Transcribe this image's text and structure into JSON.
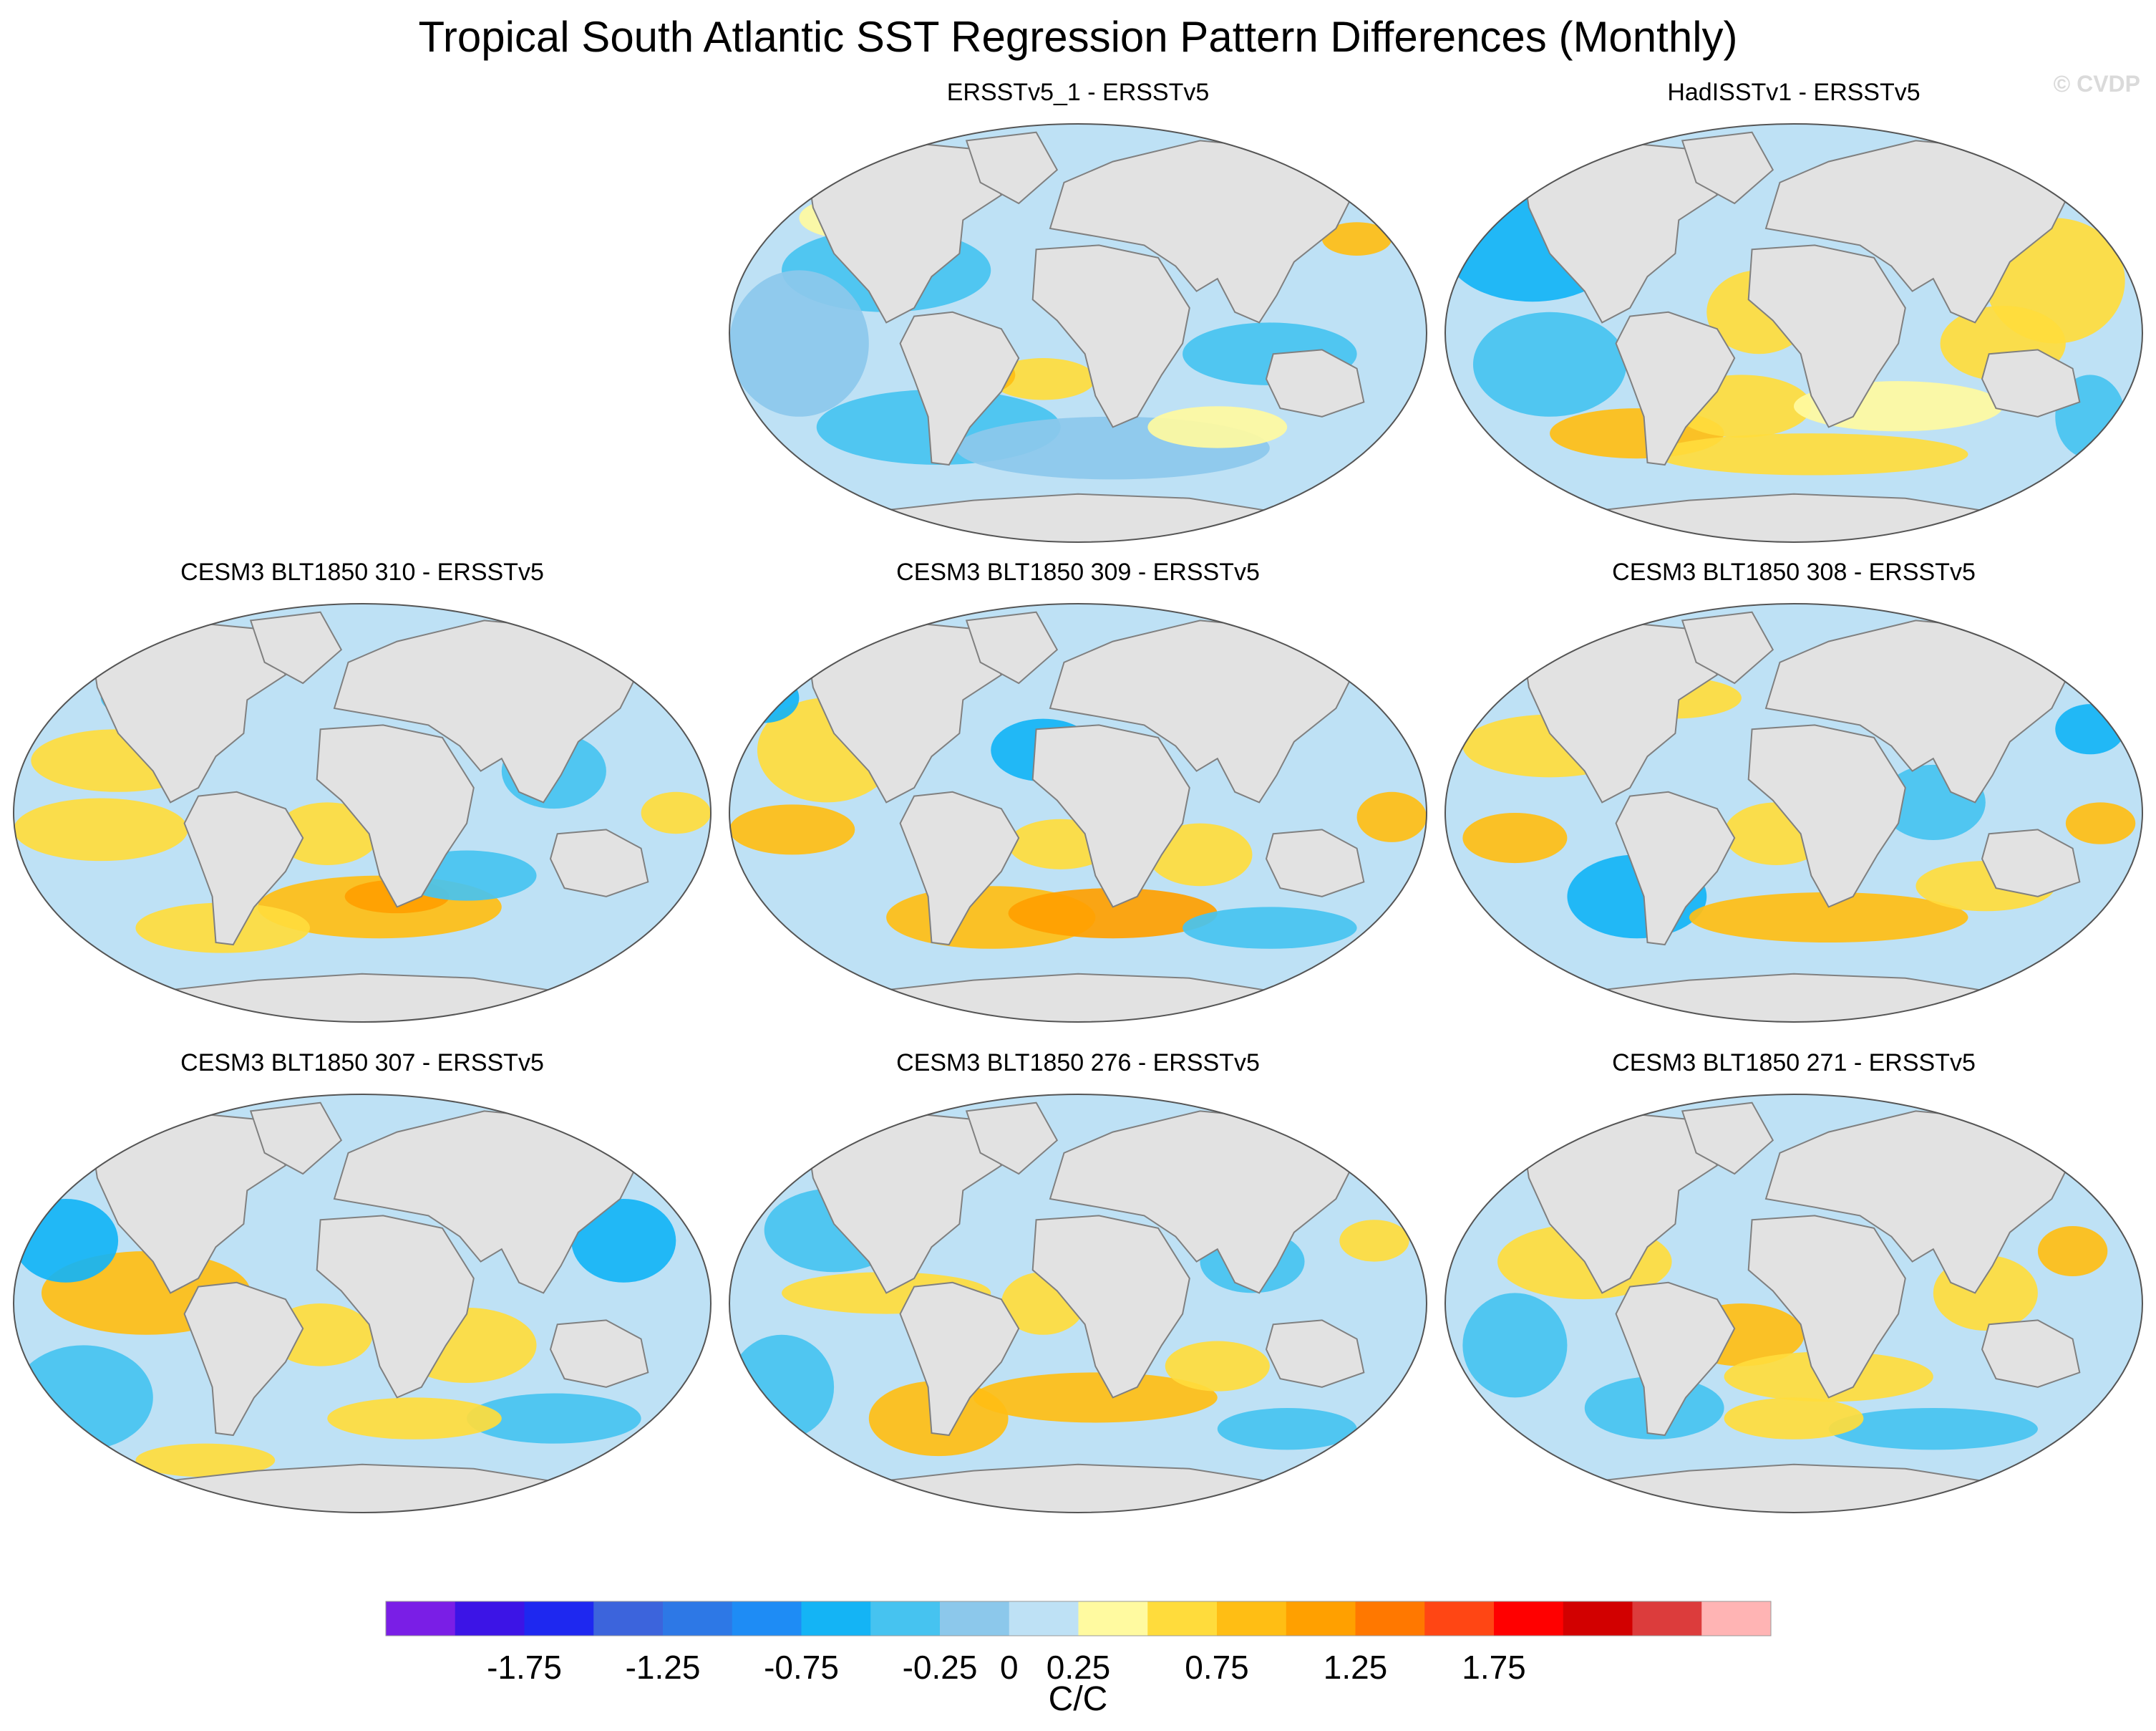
{
  "figure": {
    "title": "Tropical South Atlantic SST Regression Pattern Differences (Monthly)",
    "watermark": "© CVDP"
  },
  "chart_data": [
    {
      "type": "heatmap",
      "title": "ERSSTv5_1 - ERSSTv5",
      "projection": "Robinson",
      "pattern_summary": "mostly weak negative (blue) with scattered weak positive (yellow/orange) patches"
    },
    {
      "type": "heatmap",
      "title": "HadISSTv1 - ERSSTv5",
      "projection": "Robinson",
      "pattern_summary": "mixed; positive in Atlantic and western Pacific, negative in eastern Pacific"
    },
    {
      "type": "heatmap",
      "title": "CESM3 BLT1850 310 - ERSSTv5",
      "projection": "Robinson",
      "pattern_summary": "positive across tropical Pacific and South Atlantic, negative in North Pacific and Southern Ocean"
    },
    {
      "type": "heatmap",
      "title": "CESM3 BLT1850 309 - ERSSTv5",
      "projection": "Robinson",
      "pattern_summary": "positive in tropical Pacific and South Atlantic/Southern Indian, negative North Atlantic"
    },
    {
      "type": "heatmap",
      "title": "CESM3 BLT1850 308 - ERSSTv5",
      "projection": "Robinson",
      "pattern_summary": "positive tropical Pacific and South Atlantic, negative eastern Pacific and North Pacific"
    },
    {
      "type": "heatmap",
      "title": "CESM3 BLT1850 307 - ERSSTv5",
      "projection": "Robinson",
      "pattern_summary": "strong positive eastern tropical Pacific, negative extratropics"
    },
    {
      "type": "heatmap",
      "title": "CESM3 BLT1850 276 - ERSSTv5",
      "projection": "Robinson",
      "pattern_summary": "positive tropical Pacific band and South Atlantic, negative mid-latitudes"
    },
    {
      "type": "heatmap",
      "title": "CESM3 BLT1850 271 - ERSSTv5",
      "projection": "Robinson",
      "pattern_summary": "positive central Pacific and South Atlantic, negative Southern Ocean"
    }
  ],
  "colorbar": {
    "unit_label": "C/C",
    "levels": [
      -2,
      -1.75,
      -1.5,
      -1.25,
      -1,
      -0.75,
      -0.5,
      -0.25,
      0,
      0.25,
      0.5,
      0.75,
      1,
      1.25,
      1.5,
      1.75,
      2
    ],
    "tick_labels": [
      "-1.75",
      "-1.25",
      "-0.75",
      "-0.25",
      "0",
      "0.25",
      "0.75",
      "1.25",
      "1.75"
    ],
    "colors": [
      "#7a1ee6",
      "#3c14e6",
      "#1e28f0",
      "#3c64dc",
      "#2d78e6",
      "#1e8cf5",
      "#14b4f5",
      "#46c3f0",
      "#8cc8eb",
      "#bee1f5",
      "#fffaa0",
      "#ffdc3c",
      "#ffbe14",
      "#ffa000",
      "#ff7800",
      "#ff4614",
      "#ff0000",
      "#d20000",
      "#dc3c3c",
      "#ffb4b4"
    ]
  },
  "palette": {
    "land": "#e2e2e2",
    "coast": "#808080",
    "watermark": "#dadada"
  }
}
